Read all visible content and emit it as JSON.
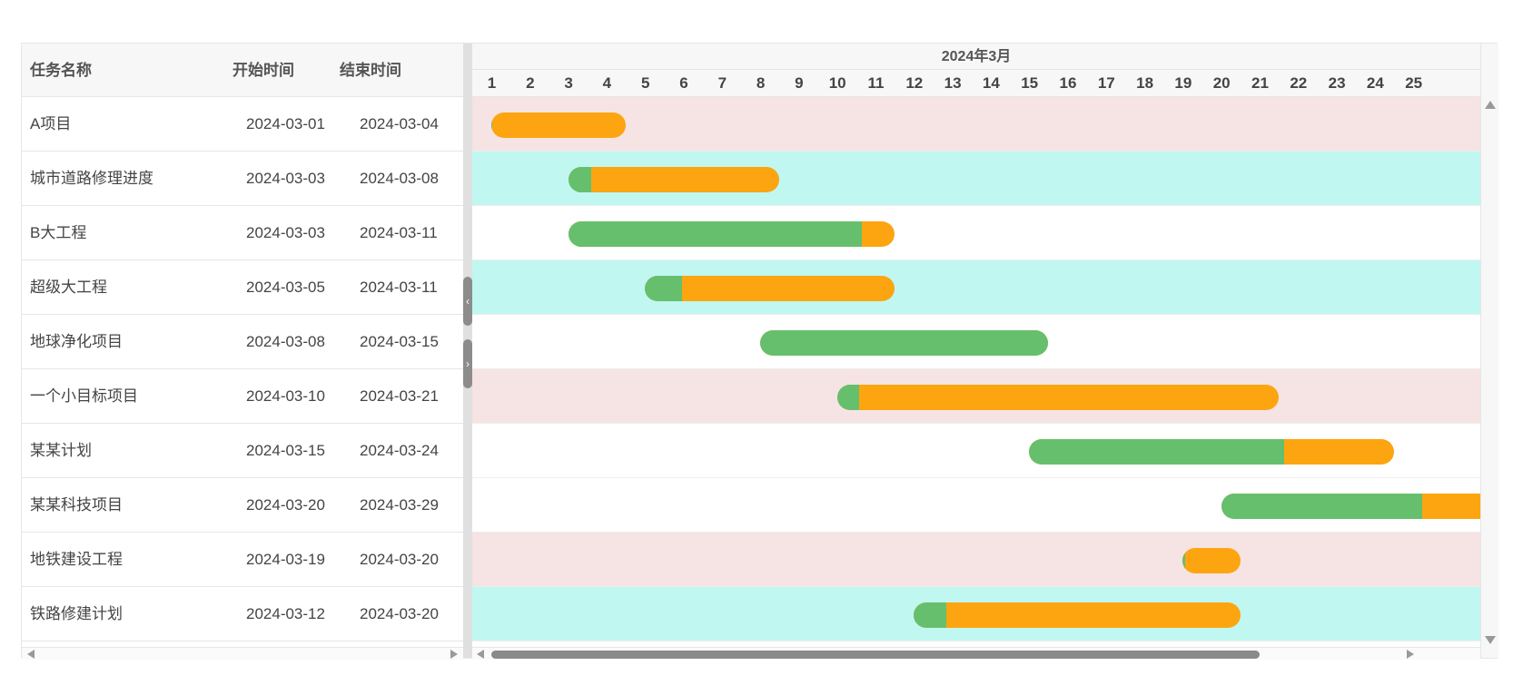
{
  "columns": {
    "name": "任务名称",
    "start": "开始时间",
    "end": "结束时间"
  },
  "timeline": {
    "month_label": "2024年3月",
    "days": [
      "1",
      "2",
      "3",
      "4",
      "5",
      "6",
      "7",
      "8",
      "9",
      "10",
      "11",
      "12",
      "13",
      "14",
      "15",
      "16",
      "17",
      "18",
      "19",
      "20",
      "21",
      "22",
      "23",
      "24",
      "25"
    ]
  },
  "colors": {
    "progress": "#66bf6c",
    "remaining": "#fca510",
    "row_pink": "#f6e3e3",
    "row_cyan": "#c0f7f1",
    "row_white": "#ffffff"
  },
  "tasks": [
    {
      "name": "A项目",
      "start": "2024-03-01",
      "end": "2024-03-04",
      "bar_start_day": 1,
      "bar_end_day": 4.5,
      "progress_pct": 1,
      "row_color": "pink"
    },
    {
      "name": "城市道路修理进度",
      "start": "2024-03-03",
      "end": "2024-03-08",
      "bar_start_day": 3,
      "bar_end_day": 8.5,
      "progress_pct": 11,
      "row_color": "cyan"
    },
    {
      "name": "B大工程",
      "start": "2024-03-03",
      "end": "2024-03-11",
      "bar_start_day": 3,
      "bar_end_day": 11.5,
      "progress_pct": 90,
      "row_color": "white"
    },
    {
      "name": "超级大工程",
      "start": "2024-03-05",
      "end": "2024-03-11",
      "bar_start_day": 5,
      "bar_end_day": 11.5,
      "progress_pct": 15,
      "row_color": "cyan"
    },
    {
      "name": "地球净化项目",
      "start": "2024-03-08",
      "end": "2024-03-15",
      "bar_start_day": 8,
      "bar_end_day": 15.5,
      "progress_pct": 100,
      "row_color": "white"
    },
    {
      "name": "一个小目标项目",
      "start": "2024-03-10",
      "end": "2024-03-21",
      "bar_start_day": 10,
      "bar_end_day": 21.5,
      "progress_pct": 5,
      "row_color": "pink"
    },
    {
      "name": "某某计划",
      "start": "2024-03-15",
      "end": "2024-03-24",
      "bar_start_day": 15,
      "bar_end_day": 24.5,
      "progress_pct": 70,
      "row_color": "white"
    },
    {
      "name": "某某科技项目",
      "start": "2024-03-20",
      "end": "2024-03-29",
      "bar_start_day": 20,
      "bar_end_day": 29.5,
      "progress_pct": 55,
      "row_color": "white"
    },
    {
      "name": "地铁建设工程",
      "start": "2024-03-19",
      "end": "2024-03-20",
      "bar_start_day": 19,
      "bar_end_day": 20.5,
      "progress_pct": 4,
      "row_color": "pink"
    },
    {
      "name": "铁路修建计划",
      "start": "2024-03-12",
      "end": "2024-03-20",
      "bar_start_day": 12,
      "bar_end_day": 20.5,
      "progress_pct": 10,
      "row_color": "cyan"
    }
  ]
}
